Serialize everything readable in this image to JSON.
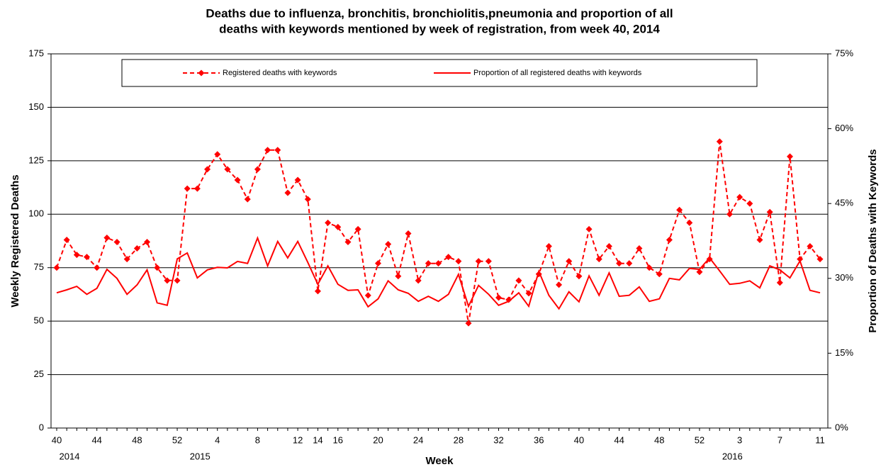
{
  "chart_data": {
    "type": "line",
    "title": [
      "Deaths due to influenza, bronchitis, bronchiolitis,pneumonia and proportion of all",
      "deaths with keywords mentioned by week of registration, from week 40, 2014"
    ],
    "x_label": "Week",
    "y_label": "Weekly Registered Deaths",
    "y2_label": "Proportion of Deaths with Keywords",
    "categories": [
      "40",
      null,
      null,
      null,
      "44",
      null,
      null,
      null,
      "48",
      null,
      null,
      null,
      "52",
      null,
      null,
      null,
      "4",
      null,
      null,
      null,
      "8",
      null,
      null,
      null,
      "12",
      null,
      "14",
      null,
      "16",
      null,
      null,
      null,
      "20",
      null,
      null,
      null,
      "24",
      null,
      null,
      null,
      "28",
      null,
      null,
      null,
      "32",
      null,
      null,
      null,
      "36",
      null,
      null,
      null,
      "40",
      null,
      null,
      null,
      "44",
      null,
      null,
      null,
      "48",
      null,
      null,
      null,
      "52",
      null,
      null,
      null,
      "3",
      null,
      null,
      null,
      "7",
      null,
      null,
      null,
      "11"
    ],
    "category_groups": [
      "2014",
      null,
      null,
      null,
      null,
      null,
      null,
      null,
      null,
      null,
      null,
      null,
      null,
      "2015",
      null,
      null,
      null,
      null,
      null,
      null,
      null,
      null,
      null,
      null,
      null,
      null,
      null,
      null,
      null,
      null,
      null,
      null,
      null,
      null,
      null,
      null,
      null,
      null,
      null,
      null,
      null,
      null,
      null,
      null,
      null,
      null,
      null,
      null,
      null,
      null,
      null,
      null,
      null,
      null,
      null,
      null,
      null,
      null,
      null,
      null,
      null,
      null,
      null,
      null,
      null,
      null,
      "2016",
      null,
      null,
      null,
      null,
      null,
      null,
      null,
      null,
      null,
      null
    ],
    "series": [
      {
        "name": "Registered deaths with keywords",
        "color": "#ff0000",
        "style": "dashed",
        "marker": "diamond",
        "values": [
          75,
          88,
          81,
          80,
          75,
          89,
          87,
          79,
          84,
          87,
          75,
          69,
          69,
          112,
          112,
          121,
          128,
          121,
          116,
          107,
          121,
          130,
          130,
          110,
          116,
          107,
          64,
          96,
          94,
          87,
          93,
          62,
          77,
          86,
          71,
          91,
          69,
          77,
          77,
          80,
          78,
          49,
          78,
          78,
          61,
          60,
          69,
          63,
          72,
          85,
          67,
          78,
          71,
          93,
          79,
          85,
          77,
          77,
          84,
          75,
          72,
          88,
          102,
          96,
          73,
          79,
          134,
          100,
          108,
          105,
          88,
          101,
          68,
          127,
          79,
          85,
          79
        ]
      },
      {
        "name": "Proportion of all registered deaths with keywords",
        "color": "#ff0000",
        "style": "solid",
        "axis": "y2",
        "values": [
          27.1,
          27.7,
          28.4,
          26.8,
          28.0,
          31.8,
          30.0,
          26.8,
          28.7,
          31.7,
          25.1,
          24.6,
          33.9,
          35.1,
          30.1,
          31.7,
          32.2,
          32.1,
          33.4,
          33.0,
          38.1,
          32.5,
          37.4,
          34.1,
          37.4,
          33.2,
          28.8,
          32.5,
          28.8,
          27.6,
          27.7,
          24.3,
          25.9,
          29.5,
          27.7,
          27.0,
          25.4,
          26.4,
          25.4,
          26.8,
          30.8,
          24.4,
          28.6,
          26.8,
          24.6,
          25.4,
          27.1,
          24.4,
          31.4,
          26.6,
          23.9,
          27.3,
          25.3,
          30.5,
          26.6,
          31.1,
          26.4,
          26.6,
          28.3,
          25.4,
          25.9,
          30.0,
          29.7,
          32.0,
          31.8,
          34.1,
          31.5,
          28.8,
          29.0,
          29.5,
          28.1,
          32.5,
          31.7,
          30.1,
          33.5,
          27.6,
          27.1
        ]
      }
    ],
    "ylim": [
      0,
      175
    ],
    "yticks": [
      0,
      25,
      50,
      75,
      100,
      125,
      150,
      175
    ],
    "y2lim": [
      0,
      75
    ],
    "y2ticks": [
      {
        "value": 0,
        "label": "0%"
      },
      {
        "value": 15,
        "label": "15%"
      },
      {
        "value": 30,
        "label": "30%"
      },
      {
        "value": 45,
        "label": "45%"
      },
      {
        "value": 60,
        "label": "60%"
      },
      {
        "value": 75,
        "label": "75%"
      }
    ],
    "grid": true,
    "legend": "top"
  }
}
